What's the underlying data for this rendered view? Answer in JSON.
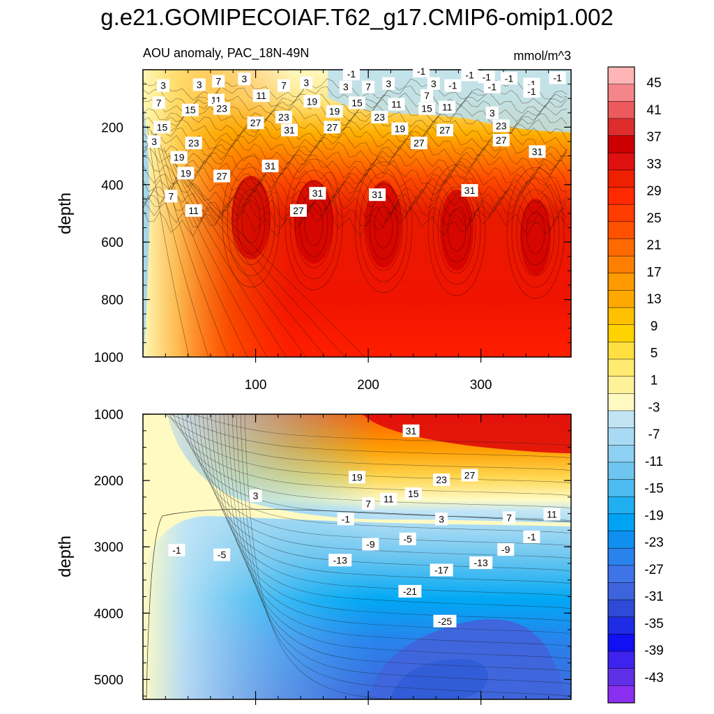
{
  "title": "g.e21.GOMIPECOIAF.T62_g17.CMIP6-omip1.002",
  "subtitle_left": "AOU anomaly, PAC_18N-49N",
  "subtitle_right": "mmol/m^3",
  "chart_data": [
    {
      "type": "heatmap",
      "panel": "upper",
      "ylabel": "depth",
      "xlim": [
        0,
        380
      ],
      "ylim": [
        0,
        1000
      ],
      "y_reversed": true,
      "x_ticks": [
        100,
        200,
        300
      ],
      "y_ticks": [
        200,
        400,
        600,
        800,
        1000
      ],
      "contour_labels": [
        {
          "x": 18,
          "y": 55,
          "v": "3"
        },
        {
          "x": 50,
          "y": 52,
          "v": "3"
        },
        {
          "x": 67,
          "y": 40,
          "v": "7"
        },
        {
          "x": 90,
          "y": 32,
          "v": "3"
        },
        {
          "x": 125,
          "y": 55,
          "v": "7"
        },
        {
          "x": 145,
          "y": 45,
          "v": "3"
        },
        {
          "x": 180,
          "y": 60,
          "v": "3"
        },
        {
          "x": 200,
          "y": 60,
          "v": "7"
        },
        {
          "x": 218,
          "y": 48,
          "v": "3"
        },
        {
          "x": 258,
          "y": 48,
          "v": "3"
        },
        {
          "x": 275,
          "y": 55,
          "v": "-1"
        },
        {
          "x": 290,
          "y": 18,
          "v": "-1"
        },
        {
          "x": 305,
          "y": 25,
          "v": "-1"
        },
        {
          "x": 310,
          "y": 60,
          "v": "-1"
        },
        {
          "x": 325,
          "y": 30,
          "v": "-1"
        },
        {
          "x": 345,
          "y": 50,
          "v": "-1"
        },
        {
          "x": 345,
          "y": 75,
          "v": "-1"
        },
        {
          "x": 368,
          "y": 28,
          "v": "-1"
        },
        {
          "x": 185,
          "y": 15,
          "v": "-1"
        },
        {
          "x": 247,
          "y": 5,
          "v": "-1"
        },
        {
          "x": 14,
          "y": 115,
          "v": "7"
        },
        {
          "x": 65,
          "y": 105,
          "v": "11"
        },
        {
          "x": 105,
          "y": 90,
          "v": "11"
        },
        {
          "x": 150,
          "y": 110,
          "v": "19"
        },
        {
          "x": 190,
          "y": 115,
          "v": "15"
        },
        {
          "x": 225,
          "y": 120,
          "v": "11"
        },
        {
          "x": 252,
          "y": 90,
          "v": "7"
        },
        {
          "x": 270,
          "y": 130,
          "v": "11"
        },
        {
          "x": 310,
          "y": 150,
          "v": "3"
        },
        {
          "x": 42,
          "y": 140,
          "v": "15"
        },
        {
          "x": 70,
          "y": 135,
          "v": "23"
        },
        {
          "x": 17,
          "y": 200,
          "v": "15"
        },
        {
          "x": 10,
          "y": 250,
          "v": "3"
        },
        {
          "x": 125,
          "y": 165,
          "v": "23"
        },
        {
          "x": 170,
          "y": 145,
          "v": "19"
        },
        {
          "x": 210,
          "y": 165,
          "v": "23"
        },
        {
          "x": 228,
          "y": 205,
          "v": "19"
        },
        {
          "x": 252,
          "y": 135,
          "v": "15"
        },
        {
          "x": 100,
          "y": 185,
          "v": "27"
        },
        {
          "x": 168,
          "y": 200,
          "v": "27"
        },
        {
          "x": 45,
          "y": 255,
          "v": "23"
        },
        {
          "x": 130,
          "y": 210,
          "v": "31"
        },
        {
          "x": 268,
          "y": 210,
          "v": "27"
        },
        {
          "x": 245,
          "y": 255,
          "v": "27"
        },
        {
          "x": 318,
          "y": 195,
          "v": "23"
        },
        {
          "x": 318,
          "y": 245,
          "v": "27"
        },
        {
          "x": 350,
          "y": 285,
          "v": "31"
        },
        {
          "x": 32,
          "y": 305,
          "v": "19"
        },
        {
          "x": 113,
          "y": 335,
          "v": "31"
        },
        {
          "x": 38,
          "y": 360,
          "v": "19"
        },
        {
          "x": 70,
          "y": 370,
          "v": "27"
        },
        {
          "x": 155,
          "y": 430,
          "v": "31"
        },
        {
          "x": 208,
          "y": 435,
          "v": "31"
        },
        {
          "x": 290,
          "y": 420,
          "v": "31"
        },
        {
          "x": 25,
          "y": 440,
          "v": "7"
        },
        {
          "x": 45,
          "y": 490,
          "v": "11"
        },
        {
          "x": 138,
          "y": 490,
          "v": "27"
        }
      ]
    },
    {
      "type": "heatmap",
      "panel": "lower",
      "ylabel": "depth",
      "xlim": [
        0,
        380
      ],
      "ylim": [
        1000,
        5300
      ],
      "y_reversed": true,
      "x_ticks": [
        100,
        200,
        300
      ],
      "y_ticks": [
        1000,
        2000,
        3000,
        4000,
        5000
      ],
      "contour_labels": [
        {
          "x": 238,
          "y": 1250,
          "v": "31"
        },
        {
          "x": 190,
          "y": 1950,
          "v": "19"
        },
        {
          "x": 265,
          "y": 1990,
          "v": "23"
        },
        {
          "x": 290,
          "y": 1920,
          "v": "27"
        },
        {
          "x": 100,
          "y": 2230,
          "v": "3"
        },
        {
          "x": 200,
          "y": 2350,
          "v": "7"
        },
        {
          "x": 218,
          "y": 2280,
          "v": "11"
        },
        {
          "x": 240,
          "y": 2200,
          "v": "15"
        },
        {
          "x": 180,
          "y": 2580,
          "v": "-1"
        },
        {
          "x": 265,
          "y": 2580,
          "v": "3"
        },
        {
          "x": 325,
          "y": 2560,
          "v": "7"
        },
        {
          "x": 363,
          "y": 2510,
          "v": "11"
        },
        {
          "x": 30,
          "y": 3050,
          "v": "-1"
        },
        {
          "x": 70,
          "y": 3120,
          "v": "-5"
        },
        {
          "x": 235,
          "y": 2880,
          "v": "-5"
        },
        {
          "x": 202,
          "y": 2960,
          "v": "-9"
        },
        {
          "x": 175,
          "y": 3200,
          "v": "-13"
        },
        {
          "x": 300,
          "y": 3240,
          "v": "-13"
        },
        {
          "x": 322,
          "y": 3040,
          "v": "-9"
        },
        {
          "x": 345,
          "y": 2850,
          "v": "-1"
        },
        {
          "x": 265,
          "y": 3350,
          "v": "-17"
        },
        {
          "x": 237,
          "y": 3670,
          "v": "-21"
        },
        {
          "x": 268,
          "y": 4120,
          "v": "-25"
        }
      ]
    }
  ],
  "colorbar": {
    "labels": [
      "45",
      "41",
      "37",
      "33",
      "29",
      "25",
      "21",
      "17",
      "13",
      "9",
      "5",
      "1",
      "-3",
      "-7",
      "-11",
      "-15",
      "-19",
      "-23",
      "-27",
      "-31",
      "-35",
      "-39",
      "-43"
    ],
    "colors": [
      "#ffb5b5",
      "#f4868a",
      "#ec5a5e",
      "#de2d2d",
      "#cc0000",
      "#e01010",
      "#ee2000",
      "#ff2a00",
      "#ff3c00",
      "#ff5100",
      "#ff6a00",
      "#ff8000",
      "#ff9a00",
      "#ffa800",
      "#ffc000",
      "#ffd200",
      "#ffe040",
      "#ffeb70",
      "#fff19a",
      "#fffac2",
      "#c2e5f6",
      "#a8dbf3",
      "#8ed0f1",
      "#6ec6f0",
      "#4cbcf0",
      "#20b0f2",
      "#00a3f4",
      "#0f90f0",
      "#2a82ec",
      "#3e74e6",
      "#3d64dc",
      "#2f4ad6",
      "#1e2ce6",
      "#1010f2",
      "#3e22ee",
      "#6030e6",
      "#8a2ef0"
    ]
  }
}
